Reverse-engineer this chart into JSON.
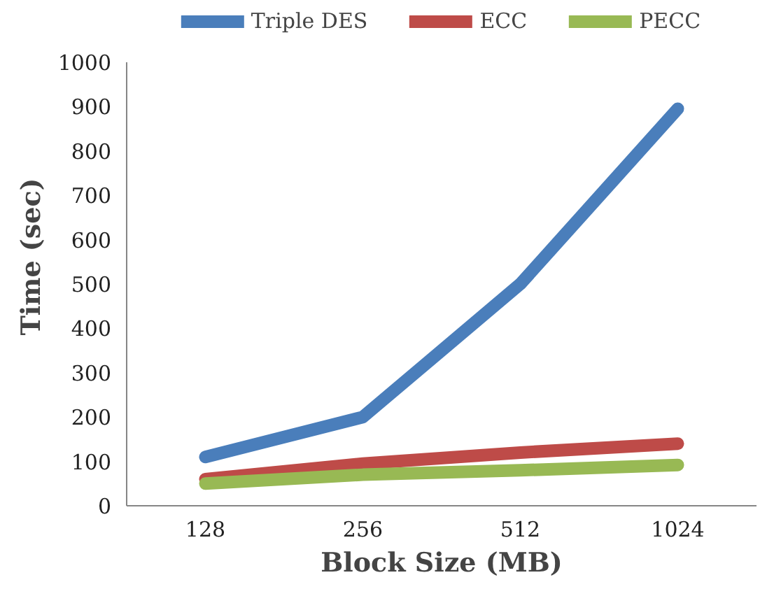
{
  "chart_data": {
    "type": "line",
    "xlabel": "Block Size (MB)",
    "ylabel": "Time (sec)",
    "categories": [
      "128",
      "256",
      "512",
      "1024"
    ],
    "series": [
      {
        "name": "Triple DES",
        "color": "#4a7ebb",
        "values": [
          110,
          200,
          500,
          895
        ]
      },
      {
        "name": "ECC",
        "color": "#be4b48",
        "values": [
          60,
          95,
          120,
          140
        ]
      },
      {
        "name": "PECC",
        "color": "#98b954",
        "values": [
          50,
          70,
          80,
          92
        ]
      }
    ],
    "ylim": [
      0,
      1000
    ],
    "yticks": [
      0,
      100,
      200,
      300,
      400,
      500,
      600,
      700,
      800,
      900,
      1000
    ],
    "grid": false,
    "legend": "top",
    "marker": "none",
    "line_style": "solid"
  }
}
